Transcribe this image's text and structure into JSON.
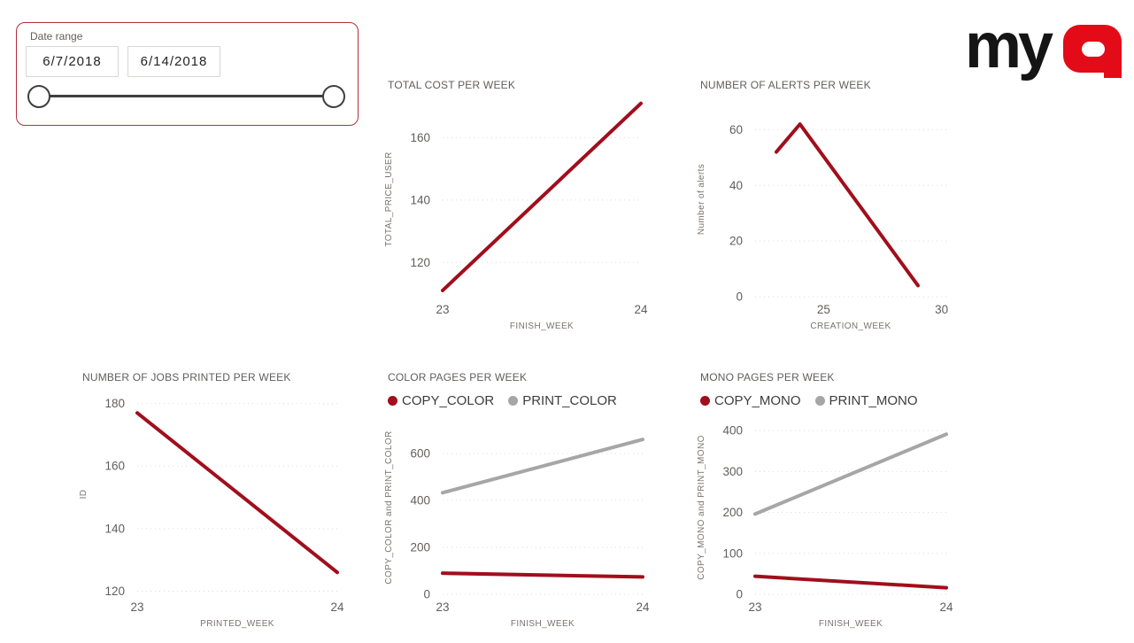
{
  "header": {
    "logo": {
      "my": "my",
      "q": "Q",
      "my_color": "#151515",
      "q_color": "#E30B17"
    }
  },
  "slicer": {
    "label": "Date range",
    "start_date": "6/7/2018",
    "end_date": "6/14/2018",
    "border_color": "#B23038"
  },
  "colors": {
    "series_red": "#A10E1C",
    "series_gray": "#A6A6A6",
    "tick_text": "#605E5C",
    "axis_title_text": "#79736E",
    "gridline": "#DBDBDB",
    "legend_text": "#3D3D3D",
    "slider": "#3F3F3F"
  },
  "chart_data": [
    {
      "type": "line",
      "title": "TOTAL COST PER WEEK",
      "xlabel": "FINISH_WEEK",
      "ylabel": "TOTAL_PRICE_USER",
      "xlim": [
        23,
        24
      ],
      "ylim": [
        109,
        171.5
      ],
      "xticks": [
        23,
        24
      ],
      "yticks": [
        120,
        140,
        160
      ],
      "grid": "dotted-horizontal",
      "legend": false,
      "series": [
        {
          "name": "TOTAL_PRICE_USER",
          "color": "#A10E1C",
          "points": [
            [
              23,
              111
            ],
            [
              24,
              171
            ]
          ]
        }
      ]
    },
    {
      "type": "line",
      "title": "NUMBER OF ALERTS PER WEEK",
      "xlabel": "CREATION_WEEK",
      "ylabel": "Number of alerts",
      "xlim": [
        22.1,
        30.2
      ],
      "ylim": [
        0,
        70
      ],
      "xticks": [
        25,
        30
      ],
      "yticks": [
        0,
        20,
        40,
        60
      ],
      "grid": "dotted-horizontal",
      "legend": false,
      "series": [
        {
          "name": "Number of alerts",
          "color": "#A10E1C",
          "points": [
            [
              23,
              52
            ],
            [
              24,
              62
            ],
            [
              29,
              4
            ]
          ]
        }
      ]
    },
    {
      "type": "line",
      "title": "NUMBER OF JOBS PRINTED PER WEEK",
      "xlabel": "PRINTED_WEEK",
      "ylabel": "ID",
      "xlim": [
        23,
        24
      ],
      "ylim": [
        119,
        183
      ],
      "xticks": [
        23,
        24
      ],
      "yticks": [
        120,
        140,
        160,
        180
      ],
      "grid": "dotted-horizontal",
      "legend": false,
      "series": [
        {
          "name": "ID",
          "color": "#A10E1C",
          "points": [
            [
              23,
              177
            ],
            [
              24,
              126
            ]
          ]
        }
      ]
    },
    {
      "type": "line",
      "title": "COLOR PAGES PER WEEK",
      "xlabel": "FINISH_WEEK",
      "ylabel": "COPY_COLOR and PRINT_COLOR",
      "xlim": [
        23,
        24
      ],
      "ylim": [
        0,
        740
      ],
      "xticks": [
        23,
        24
      ],
      "yticks": [
        0,
        200,
        400,
        600
      ],
      "grid": "dotted-horizontal",
      "legend": true,
      "series": [
        {
          "name": "COPY_COLOR",
          "color": "#A10E1C",
          "points": [
            [
              23,
              90
            ],
            [
              24,
              74
            ]
          ]
        },
        {
          "name": "PRINT_COLOR",
          "color": "#A6A6A6",
          "points": [
            [
              23,
              433
            ],
            [
              24,
              660
            ]
          ]
        }
      ]
    },
    {
      "type": "line",
      "title": "MONO PAGES PER WEEK",
      "xlabel": "FINISH_WEEK",
      "ylabel": "COPY_MONO and PRINT_MONO",
      "xlim": [
        23,
        24
      ],
      "ylim": [
        0,
        424
      ],
      "xticks": [
        23,
        24
      ],
      "yticks": [
        0,
        100,
        200,
        300,
        400
      ],
      "grid": "dotted-horizontal",
      "legend": true,
      "series": [
        {
          "name": "COPY_MONO",
          "color": "#A10E1C",
          "points": [
            [
              23,
              44
            ],
            [
              24,
              16
            ]
          ]
        },
        {
          "name": "PRINT_MONO",
          "color": "#A6A6A6",
          "points": [
            [
              23,
              196
            ],
            [
              24,
              391
            ]
          ]
        }
      ]
    }
  ]
}
